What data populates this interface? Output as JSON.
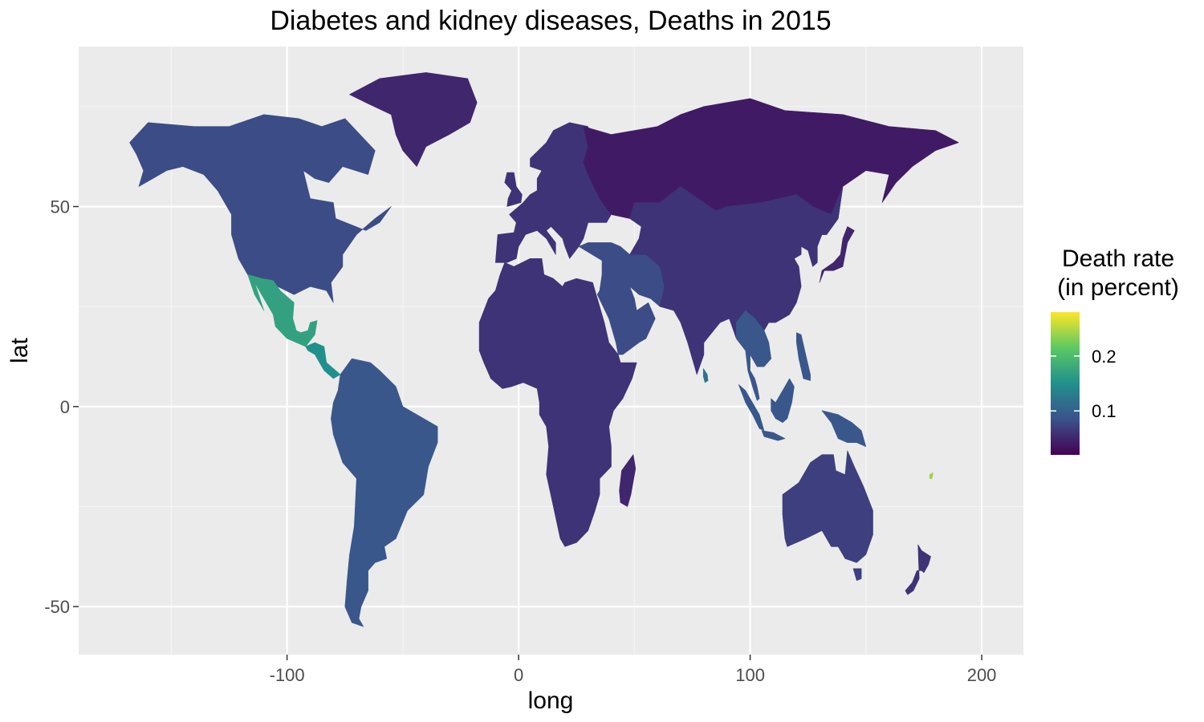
{
  "chart_data": {
    "type": "choropleth-map",
    "title": "Diabetes and kidney diseases, Deaths in 2015",
    "xlabel": "long",
    "ylabel": "lat",
    "x_ticks": [
      -100,
      0,
      100,
      200
    ],
    "y_ticks": [
      50,
      0,
      -50
    ],
    "xlim": [
      -190,
      218
    ],
    "ylim": [
      -62,
      90
    ],
    "grid": true,
    "background": "#ebebeb",
    "legend": {
      "title_line1": "Death rate",
      "title_line2": "(in percent)",
      "placement": "right",
      "breaks": [
        0.2,
        0.1
      ],
      "range": [
        0.02,
        0.28
      ],
      "colors": [
        "#440154",
        "#3b528b",
        "#21908d",
        "#5dc863",
        "#fde725"
      ]
    },
    "regions": [
      {
        "name": "North America",
        "value": 0.08
      },
      {
        "name": "Greenland",
        "value": 0.05
      },
      {
        "name": "Mexico",
        "value": 0.17
      },
      {
        "name": "Central America",
        "value": 0.15
      },
      {
        "name": "South America",
        "value": 0.09
      },
      {
        "name": "Europe",
        "value": 0.06
      },
      {
        "name": "Russia",
        "value": 0.04
      },
      {
        "name": "Africa",
        "value": 0.06
      },
      {
        "name": "Middle East",
        "value": 0.08
      },
      {
        "name": "Asia",
        "value": 0.06
      },
      {
        "name": "Southeast Asia",
        "value": 0.09
      },
      {
        "name": "Australia",
        "value": 0.07
      },
      {
        "name": "New Zealand",
        "value": 0.06
      },
      {
        "name": "Madagascar",
        "value": 0.05
      },
      {
        "name": "Japan",
        "value": 0.05
      },
      {
        "name": "Sri Lanka",
        "value": 0.12
      },
      {
        "name": "Fiji",
        "value": 0.24
      }
    ]
  }
}
